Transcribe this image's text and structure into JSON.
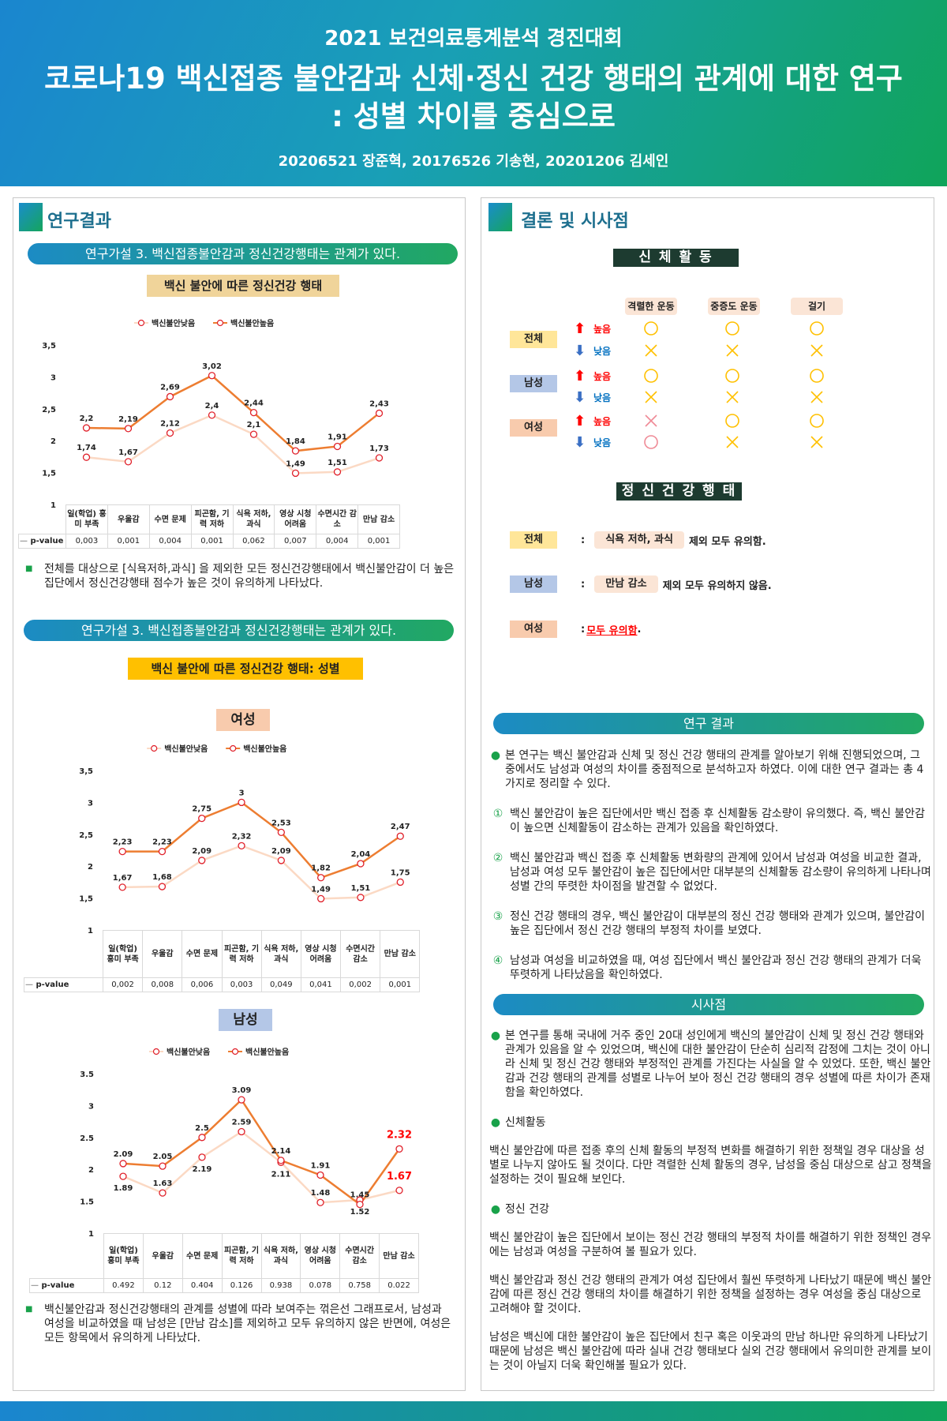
{
  "header": {
    "competition": "2021 보건의료통계분석 경진대회",
    "title_line1": "코로나19 백신접종 불안감과 신체·정신 건강 행태의 관계에 대한 연구",
    "title_line2": ": 성별 차이를 중심으로",
    "authors": "20206521 장준혁, 20176526 기송현, 20201206 김세인"
  },
  "left": {
    "section_title": "연구결과",
    "hypothesis1": "연구가설 3. 백신접종불안감과 정신건강행태는 관계가 있다.",
    "chart1_label": "백신 불안에 따른 정신건강 행태",
    "note1": "전체를 대상으로 [식욕저하,과식] 을 제외한 모든 정신건강행태에서 백신불안감이 더 높은 집단에서 정신건강행태 점수가 높은 것이 유의하게 나타났다.",
    "hypothesis2": "연구가설 3. 백신접종불안감과 정신건강행태는 관계가 있다.",
    "chart2_label": "백신 불안에 따른 정신건강 행태: 성별",
    "female_label": "여성",
    "male_label": "남성",
    "note2": "백신불안감과 정신건강행태의 관계를 성별에 따라 보여주는 꺾은선 그래프로서, 남성과 여성을 비교하였을 때 남성은 [만남 감소]를 제외하고 모두 유의하지 않은 반면에, 여성은 모든 항목에서 유의하게 나타났다."
  },
  "chart_data": [
    {
      "type": "line",
      "title": "",
      "categories": [
        "일(학업) 흥미 부족",
        "우울감",
        "수면 문제",
        "피곤함, 기력 저하",
        "식욕 저하, 과식",
        "영상 시청 어려움",
        "수면시간 감소",
        "만남 감소"
      ],
      "series": [
        {
          "name": "백신불안낮음",
          "values": [
            1.74,
            1.67,
            2.12,
            2.4,
            2.1,
            1.49,
            1.51,
            1.73
          ],
          "labels": [
            "1,74",
            "1,67",
            "2,12",
            "2,4",
            "2,1",
            "1,49",
            "1,51",
            "1,73"
          ],
          "color": "#fbd9c4"
        },
        {
          "name": "백신불안높음",
          "values": [
            2.2,
            2.19,
            2.69,
            3.02,
            2.44,
            1.84,
            1.91,
            2.43
          ],
          "labels": [
            "2,2",
            "2,19",
            "2,69",
            "3,02",
            "2,44",
            "1,84",
            "1,91",
            "2,43"
          ],
          "color": "#ed7d31"
        }
      ],
      "ylim": [
        1,
        3.5
      ],
      "yticks": [
        "1",
        "1,5",
        "2",
        "2,5",
        "3",
        "3,5"
      ],
      "legend": "top",
      "table_label": "p-value",
      "p_values": [
        "0,003",
        "0,001",
        "0,004",
        "0,001",
        "0,062",
        "0,007",
        "0,004",
        "0,001"
      ]
    },
    {
      "type": "line",
      "title": "",
      "categories": [
        "일(학업) 흥미 부족",
        "우울감",
        "수면 문제",
        "피곤함, 기력 저하",
        "식욕 저하, 과식",
        "영상 시청 어려움",
        "수면시간 감소",
        "만남 감소"
      ],
      "series": [
        {
          "name": "백신불안낮음",
          "values": [
            1.67,
            1.68,
            2.09,
            2.32,
            2.09,
            1.49,
            1.51,
            1.75
          ],
          "labels": [
            "1,67",
            "1,68",
            "2,09",
            "2,32",
            "2,09",
            "1,49",
            "1,51",
            "1,75"
          ],
          "color": "#fbd9c4"
        },
        {
          "name": "백신불안높음",
          "values": [
            2.23,
            2.23,
            2.75,
            3,
            2.53,
            1.82,
            2.04,
            2.47
          ],
          "labels": [
            "2,23",
            "2,23",
            "2,75",
            "3",
            "2,53",
            "1,82",
            "2,04",
            "2,47"
          ],
          "color": "#ed7d31"
        }
      ],
      "ylim": [
        1,
        3.5
      ],
      "yticks": [
        "1",
        "1,5",
        "2",
        "2,5",
        "3",
        "3,5"
      ],
      "legend": "top",
      "table_label": "p-value",
      "p_values": [
        "0,002",
        "0,008",
        "0,006",
        "0,003",
        "0,049",
        "0,041",
        "0,002",
        "0,001"
      ]
    },
    {
      "type": "line",
      "title": "",
      "categories": [
        "일(학업) 흥미 부족",
        "우울감",
        "수면 문제",
        "피곤함, 기력 저하",
        "식욕 저하, 과식",
        "영상 시청 어려움",
        "수면시간 감소",
        "만남 감소"
      ],
      "series": [
        {
          "name": "백신불안낮음",
          "values": [
            1.89,
            1.63,
            2.19,
            2.59,
            2.11,
            1.48,
            1.52,
            1.67
          ],
          "labels": [
            "1.89",
            "1.63",
            "2.19",
            "2.59",
            "2.11",
            "1.48",
            "1.52",
            "1.67"
          ],
          "color": "#fbd9c4"
        },
        {
          "name": "백신불안높음",
          "values": [
            2.09,
            2.05,
            2.5,
            3.09,
            2.14,
            1.91,
            1.45,
            2.32
          ],
          "labels": [
            "2.09",
            "2.05",
            "2.5",
            "3.09",
            "2.14",
            "1.91",
            "1.45",
            "2.32"
          ],
          "color": "#ed7d31"
        }
      ],
      "ylim": [
        1,
        3.5
      ],
      "yticks": [
        "1",
        "1.5",
        "2",
        "2.5",
        "3",
        "3.5"
      ],
      "legend": "top",
      "highlight_color": "#ff0000",
      "highlight_category": "만남 감소",
      "table_label": "p-value",
      "p_values": [
        "0.492",
        "0.12",
        "0.404",
        "0.126",
        "0.938",
        "0.078",
        "0.758",
        "0.022"
      ]
    }
  ],
  "right": {
    "section_title": "결론 및 시사점",
    "physical_title": "신 체 활 동",
    "columns": [
      "격렬한 운동",
      "중증도 운동",
      "걸기"
    ],
    "groups": [
      {
        "name": "전체",
        "color": "#ffe699",
        "rows": [
          {
            "level": "높음",
            "arrow": "up-arrow",
            "marks": [
              "circle",
              "circle",
              "circle"
            ]
          },
          {
            "level": "낮음",
            "arrow": "down-arrow",
            "marks": [
              "cross",
              "cross",
              "cross"
            ]
          }
        ]
      },
      {
        "name": "남성",
        "color": "#b4c7e7",
        "rows": [
          {
            "level": "높음",
            "arrow": "up-arrow",
            "marks": [
              "circle",
              "circle",
              "circle"
            ]
          },
          {
            "level": "낮음",
            "arrow": "down-arrow",
            "marks": [
              "cross",
              "cross",
              "cross"
            ]
          }
        ]
      },
      {
        "name": "여성",
        "color": "#f8cbad",
        "rows": [
          {
            "level": "높음",
            "arrow": "up-arrow",
            "marks": [
              "cross-pink",
              "circle",
              "circle"
            ]
          },
          {
            "level": "낮음",
            "arrow": "down-arrow",
            "marks": [
              "circle-pink",
              "cross",
              "cross"
            ]
          }
        ]
      }
    ],
    "mental_title": "정 신  건 강 행 태",
    "mental": [
      {
        "group": "전체",
        "colon": ":",
        "chip": "식욕 저하, 과식",
        "text": "제외 모두 유의함."
      },
      {
        "group": "남성",
        "colon": ":",
        "chip": "만남 감소",
        "text": "제외 모두 유의하지 않음."
      },
      {
        "group": "여성",
        "colon": ":",
        "emph": "모두 유의함",
        "text": "."
      }
    ],
    "results_title": "연구 결과",
    "results_intro": "본 연구는 백신 불안감과 신체 및 정신 건강 행태의 관계를 알아보기 위해 진행되었으며, 그 중에서도 남성과 여성의 차이를 중점적으로 분석하고자 하였다. 이에 대한 연구 결과는 총 4가지로 정리할 수 있다.",
    "results": [
      {
        "num": "①",
        "text": "백신 불안감이 높은 집단에서만 백신 접종 후 신체활동 감소량이 유의했다. 즉, 백신 불안감이 높으면 신체활동이 감소하는 관계가 있음을 확인하였다."
      },
      {
        "num": "②",
        "text": "백신 불안감과 백신 접종 후 신체활동 변화량의 관계에 있어서 남성과 여성을 비교한 결과, 남성과 여성 모두 불안감이 높은 집단에서만 대부분의 신체활동 감소량이 유의하게 나타나며 성별 간의 뚜렷한 차이점을 발견할 수 없었다."
      },
      {
        "num": "③",
        "text": "정신 건강 행태의 경우, 백신 불안감이 대부분의 정신 건강 행태와 관계가 있으며, 불안감이 높은 집단에서 정신 건강 행태의 부정적 차이를 보였다."
      },
      {
        "num": "④",
        "text": "남성과 여성을 비교하였을 때, 여성 집단에서 백신 불안감과 정신 건강 행태의 관계가 더욱 뚜렷하게 나타났음을 확인하였다."
      }
    ],
    "implications_title": "시사점",
    "implications_intro": "본 연구를 통해 국내에 거주 중인 20대 성인에게 백신의 불안감이 신체 및 정신 건강 행태와 관계가 있음을 알 수 있었으며, 백신에 대한 불안감이 단순히 심리적 감정에 그치는 것이 아니라 신체 및 정신 건강 행태와 부정적인 관계를 가진다는 사실을 알 수 있었다. 또한, 백신 불안감과 건강 행태의 관계를 성별로 나누어 보아 정신 건강 행태의 경우 성별에 따른 차이가 존재함을 확인하였다.",
    "physical_heading": "신체활동",
    "physical_text": "백신 불안감에 따른 접종 후의 신체 활동의 부정적 변화를 해결하기 위한 정책일 경우 대상을 성별로 나누지 않아도 될 것이다. 다만 격렬한 신체 활동의 경우, 남성을 중심 대상으로 삼고 정책을 설정하는 것이 필요해 보인다.",
    "mental_heading": "정신 건강",
    "mental_text1": "백신 불안감이 높은 집단에서 보이는 정신 건강 행태의 부정적 차이를 해결하기 위한 정책인 경우에는 남성과 여성을 구분하여 볼 필요가 있다.",
    "mental_text2": "백신 불안감과 정신 건강 행태의 관계가 여성 집단에서 훨씬 뚜렷하게 나타났기 때문에 백신 불안감에 따른 정신 건강 행태의 차이를 해결하기 위한 정책을 설정하는 경우 여성을 중심 대상으로 고려해야 할 것이다.",
    "mental_text3": "남성은 백신에 대한 불안감이 높은 집단에서 친구 혹은 이웃과의 만남 하나만 유의하게 나타났기 때문에 남성은 백신 불안감에 따라 실내 건강 행태보다 실외 건강 행태에서 유의미한 관계를 보이는 것이 아닐지 더욱 확인해볼 필요가 있다."
  }
}
